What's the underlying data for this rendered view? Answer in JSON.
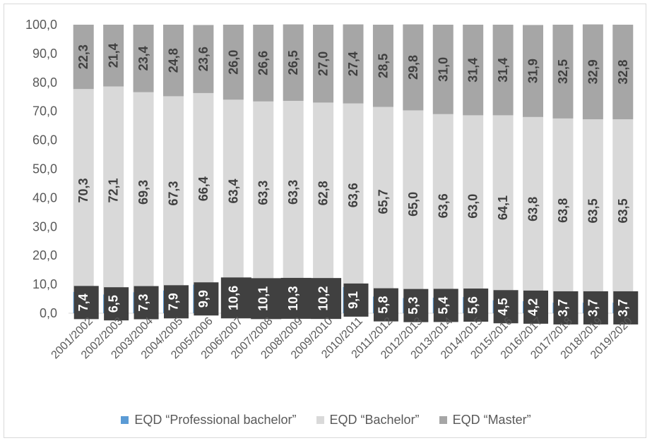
{
  "chart_data": {
    "type": "bar",
    "stacked": true,
    "categories": [
      "2001/2002",
      "2002/2003",
      "2003/2004",
      "2004/2005",
      "2005/2006",
      "2006/2007",
      "2007/2008",
      "2008/2009",
      "2009/2010",
      "2010/2011",
      "2011/2012",
      "2012/2013",
      "2013/2014",
      "2014/2015",
      "2015/2016",
      "2016/2017",
      "2017/2018",
      "2018/2019",
      "2019/2020"
    ],
    "series": [
      {
        "name": "EQD “Professional bachelor”",
        "color": "#5b9bd5",
        "values": [
          7.4,
          6.5,
          7.3,
          7.9,
          9.9,
          10.6,
          10.1,
          10.3,
          10.2,
          9.1,
          5.8,
          5.3,
          5.4,
          5.6,
          4.5,
          4.2,
          3.7,
          3.7,
          3.7
        ],
        "labels": [
          "7,4",
          "6,5",
          "7,3",
          "7,9",
          "9,9",
          "10,6",
          "10,1",
          "10,3",
          "10,2",
          "9,1",
          "5,8",
          "5,3",
          "5,4",
          "5,6",
          "4,5",
          "4,2",
          "3,7",
          "3,7",
          "3,7"
        ]
      },
      {
        "name": "EQD “Bachelor”",
        "color": "#d9d9d9",
        "values": [
          70.3,
          72.1,
          69.3,
          67.3,
          66.4,
          63.4,
          63.3,
          63.3,
          62.8,
          63.6,
          65.7,
          65.0,
          63.6,
          63.0,
          64.1,
          63.8,
          63.8,
          63.5,
          63.5
        ],
        "labels": [
          "70,3",
          "72,1",
          "69,3",
          "67,3",
          "66,4",
          "63,4",
          "63,3",
          "63,3",
          "62,8",
          "63,6",
          "65,7",
          "65,0",
          "63,6",
          "63,0",
          "64,1",
          "63,8",
          "63,8",
          "63,5",
          "63,5"
        ]
      },
      {
        "name": "EQD “Master”",
        "color": "#a6a6a6",
        "values": [
          22.3,
          21.4,
          23.4,
          24.8,
          23.6,
          26.0,
          26.6,
          26.5,
          27.0,
          27.4,
          28.5,
          29.8,
          31.0,
          31.4,
          31.4,
          31.9,
          32.5,
          32.9,
          32.8
        ],
        "labels": [
          "22,3",
          "21,4",
          "23,4",
          "24,8",
          "23,6",
          "26,0",
          "26,6",
          "26,5",
          "27,0",
          "27,4",
          "28,5",
          "29,8",
          "31,0",
          "31,4",
          "31,4",
          "31,9",
          "32,5",
          "32,9",
          "32,8"
        ]
      }
    ],
    "ylim": [
      0,
      100
    ],
    "yticks": [
      "0,0",
      "10,0",
      "20,0",
      "30,0",
      "40,0",
      "50,0",
      "60,0",
      "70,0",
      "80,0",
      "90,0",
      "100,0"
    ],
    "grid": false,
    "legend_position": "bottom",
    "title": "",
    "xlabel": "",
    "ylabel": ""
  },
  "legend": {
    "items": [
      {
        "label": "EQD “Professional bachelor”",
        "color": "#5b9bd5"
      },
      {
        "label": "EQD “Bachelor”",
        "color": "#d9d9d9"
      },
      {
        "label": "EQD “Master”",
        "color": "#a6a6a6"
      }
    ]
  }
}
